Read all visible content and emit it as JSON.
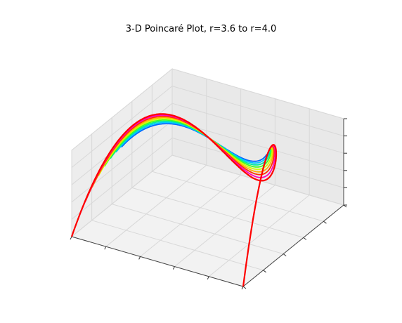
{
  "chart_data": {
    "type": "scatter",
    "projection": "3d",
    "title": "3-D Poincaré Plot, r=3.6 to r=4.0",
    "xlabel": "",
    "ylabel": "",
    "zlabel": "",
    "grid": true,
    "tick_labels_visible": false,
    "colormap": "hsv (blue → violet → red as r increases)",
    "map": "logistic map x(n+1) = r·x(n)·(1 − x(n))",
    "point_form": "(x(n), x(n+1), x(n+2))",
    "r_range": [
      3.6,
      4.0
    ],
    "series": [
      {
        "r": 3.6,
        "color": "#0066ff"
      },
      {
        "r": 3.65,
        "color": "#00c8ff"
      },
      {
        "r": 3.7,
        "color": "#00e8a0"
      },
      {
        "r": 3.75,
        "color": "#40ff20"
      },
      {
        "r": 3.8,
        "color": "#d0ff00"
      },
      {
        "r": 3.85,
        "color": "#ffb000"
      },
      {
        "r": 3.9,
        "color": "#ff3000"
      },
      {
        "r": 3.95,
        "color": "#ff00c0"
      },
      {
        "r": 4.0,
        "color": "#ff0000"
      }
    ],
    "xlim": [
      0,
      1
    ],
    "ylim": [
      0,
      1
    ],
    "zlim": [
      0,
      1
    ]
  }
}
